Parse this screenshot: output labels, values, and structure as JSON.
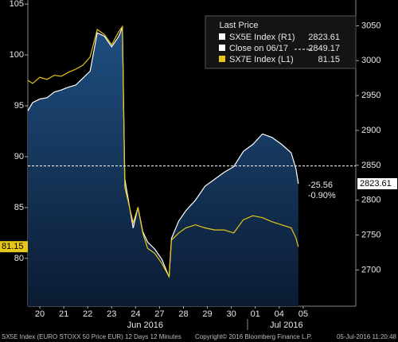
{
  "chart_data": {
    "type": "line",
    "legend_title": "Last Price",
    "x": [
      0,
      0.2,
      0.5,
      0.8,
      1.1,
      1.4,
      1.7,
      2.0,
      2.3,
      2.6,
      2.9,
      3.2,
      3.5,
      3.8,
      3.95,
      4.05,
      4.2,
      4.4,
      4.6,
      4.8,
      5.0,
      5.3,
      5.6,
      5.9,
      6.0,
      6.3,
      6.6,
      7.0,
      7.4,
      7.8,
      8.2,
      8.6,
      9.0,
      9.4,
      9.8,
      10.2,
      10.6,
      11.0,
      11.2,
      11.3
    ],
    "series": [
      {
        "name": "SX5E Index (R1)",
        "color": "#ffffff",
        "axis": "y2",
        "area": true,
        "last": 2823.61,
        "values": [
          2928,
          2940,
          2945,
          2947,
          2955,
          2958,
          2962,
          2965,
          2975,
          2985,
          3040,
          3035,
          3020,
          3035,
          3048,
          2830,
          2800,
          2760,
          2790,
          2755,
          2740,
          2730,
          2715,
          2690,
          2745,
          2770,
          2785,
          2800,
          2820,
          2830,
          2840,
          2848,
          2870,
          2880,
          2895,
          2890,
          2880,
          2868,
          2845,
          2823.61
        ]
      },
      {
        "name": "SX7E Index (L1)",
        "color": "#e6c619",
        "axis": "y",
        "last": 81.15,
        "values": [
          97.5,
          97.2,
          97.8,
          97.6,
          98.0,
          97.9,
          98.3,
          98.6,
          99.0,
          99.8,
          102.5,
          102.0,
          101.0,
          102.3,
          102.8,
          87.0,
          85.5,
          83.5,
          85.0,
          82.5,
          81.0,
          80.5,
          79.5,
          78.2,
          81.8,
          82.5,
          83.0,
          83.3,
          83.0,
          82.8,
          82.8,
          82.5,
          83.8,
          84.2,
          84.0,
          83.6,
          83.3,
          83.0,
          82.0,
          81.15
        ]
      }
    ],
    "reference": {
      "name": "Close on 06/17",
      "value": 2849.17,
      "axis": "y2",
      "color": "#ffffff"
    },
    "annotations": [
      "-25.56",
      "-0.90%"
    ],
    "xlim": [
      0,
      13.7
    ],
    "xticks": [
      {
        "value": 0.5,
        "label": "20"
      },
      {
        "value": 1.5,
        "label": "21"
      },
      {
        "value": 2.5,
        "label": "22"
      },
      {
        "value": 3.5,
        "label": "23"
      },
      {
        "value": 4.5,
        "label": "24"
      },
      {
        "value": 5.5,
        "label": "27"
      },
      {
        "value": 6.5,
        "label": "28"
      },
      {
        "value": 7.5,
        "label": "29"
      },
      {
        "value": 8.5,
        "label": "30"
      },
      {
        "value": 9.5,
        "label": "01"
      },
      {
        "value": 10.5,
        "label": "04"
      },
      {
        "value": 11.5,
        "label": "05"
      }
    ],
    "months": [
      {
        "value": 4.9,
        "label": "Jun 2016"
      },
      {
        "value": 10.8,
        "label": "Jul 2016"
      }
    ],
    "ylim": [
      75.3,
      105.4
    ],
    "yticks": [
      80,
      85,
      90,
      95,
      100,
      105
    ],
    "y2lim": [
      2648,
      3087
    ],
    "y2ticks": [
      2700,
      2750,
      2800,
      2850,
      2900,
      2950,
      3000,
      3050
    ],
    "footer": [
      "SX5E Index (EURO STOXX 50 Price EUR) 12 Days 12 Minutes",
      "Copyright© 2016 Bloomberg Finance L.P.",
      "05-Jul-2016 11:20:48"
    ]
  }
}
